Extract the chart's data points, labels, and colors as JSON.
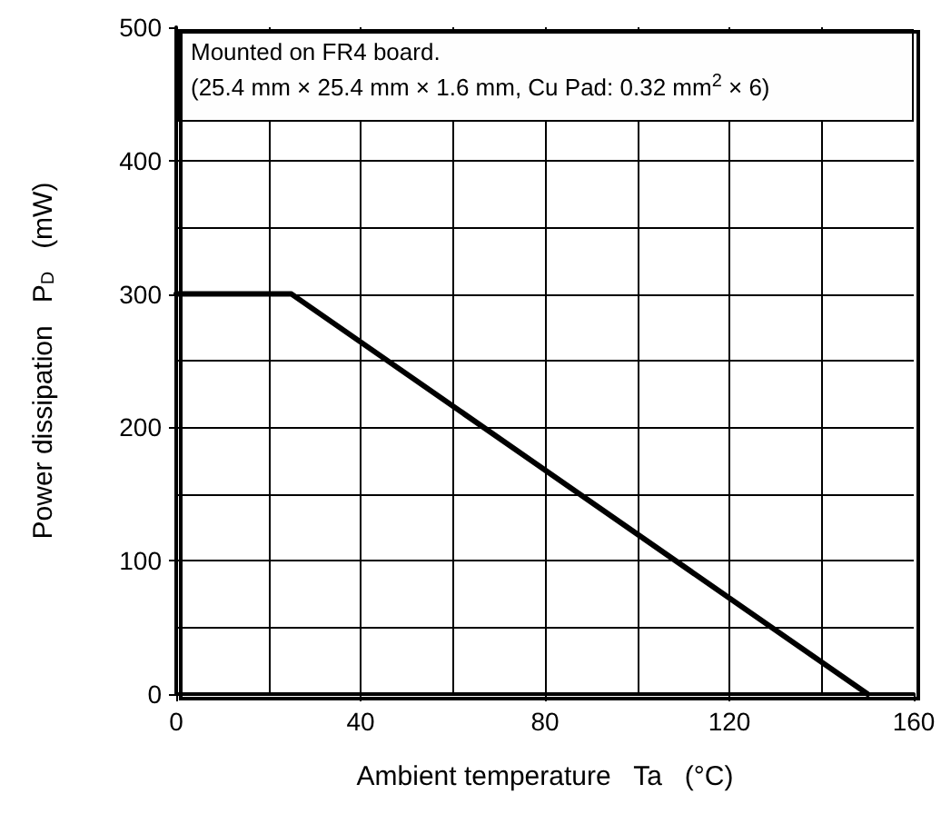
{
  "chart_data": {
    "type": "line",
    "xlabel": "Ambient temperature   Ta   (°C)",
    "ylabel": "Power dissipation   P$_{D}$   (mW)",
    "annotations": [
      "Mounted on FR4 board.",
      "(25.4 mm × 25.4 mm × 1.6 mm, Cu Pad: 0.32 mm$^{2}$ × 6)"
    ],
    "x": [
      0,
      25,
      150
    ],
    "series": [
      {
        "color": "#000000",
        "values": [
          300,
          300,
          0
        ]
      }
    ],
    "xlim": [
      0,
      160
    ],
    "ylim": [
      0,
      500
    ],
    "xticks": [
      0,
      {
        "value": 20,
        "label": null
      },
      40,
      {
        "value": 60,
        "label": null
      },
      80,
      {
        "value": 100,
        "label": null
      },
      120,
      {
        "value": 140,
        "label": null
      },
      160
    ],
    "yticks": [
      0,
      {
        "value": 50,
        "label": null
      },
      100,
      {
        "value": 150,
        "label": null
      },
      200,
      {
        "value": 250,
        "label": null
      },
      300,
      {
        "value": 350,
        "label": null
      },
      400,
      500
    ],
    "grid": true,
    "marker": "none",
    "line_style": "solid"
  }
}
